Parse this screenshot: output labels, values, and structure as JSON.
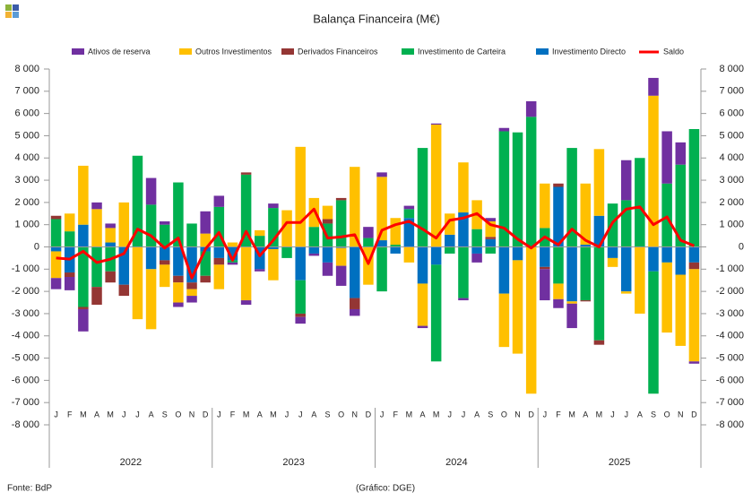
{
  "chart_data": {
    "type": "bar",
    "title": "Balança Financeira (M€)",
    "source": "Fonte: BdP",
    "credit": "(Gráfico: DGE)",
    "stacked": true,
    "categories": [
      "J",
      "F",
      "M",
      "A",
      "M",
      "J",
      "J",
      "A",
      "S",
      "O",
      "N",
      "D",
      "J",
      "F",
      "M",
      "A",
      "M",
      "J",
      "J",
      "A",
      "S",
      "O",
      "N",
      "D",
      "J",
      "F",
      "M",
      "A",
      "M",
      "J",
      "J",
      "A",
      "S",
      "O",
      "N",
      "D",
      "J",
      "F",
      "M",
      "A",
      "M",
      "J",
      "J",
      "A",
      "S",
      "O",
      "N",
      "D"
    ],
    "years": [
      "2022",
      "2023",
      "2024",
      "2025"
    ],
    "series": [
      {
        "name": "Ativos de reserva",
        "color": "#7030a0",
        "values": [
          -500,
          -600,
          -1000,
          300,
          200,
          0,
          0,
          1200,
          150,
          -200,
          -300,
          1000,
          500,
          -100,
          -200,
          -100,
          200,
          0,
          -300,
          -100,
          -600,
          -900,
          -300,
          500,
          200,
          0,
          150,
          -100,
          50,
          0,
          -100,
          -400,
          150,
          150,
          0,
          700,
          -1400,
          -400,
          -1100,
          0,
          0,
          0,
          1800,
          0,
          800,
          2350,
          1000,
          -100
        ]
      },
      {
        "name": "Outros Investimentos",
        "color": "#ffc000",
        "values": [
          -1200,
          800,
          2650,
          1700,
          650,
          2000,
          -3250,
          -2700,
          -1000,
          -900,
          -300,
          600,
          -1100,
          200,
          -2400,
          250,
          -1400,
          1650,
          4500,
          1300,
          600,
          -800,
          3600,
          -1700,
          2850,
          1200,
          -700,
          -1900,
          5500,
          950,
          2250,
          1300,
          700,
          -2400,
          -4200,
          -6600,
          2000,
          -700,
          -100,
          2750,
          3000,
          -400,
          -100,
          -3000,
          6800,
          -3150,
          -3200,
          -4150
        ]
      },
      {
        "name": "Derivados Financeiros",
        "color": "#943634",
        "values": [
          150,
          -200,
          -100,
          -800,
          -500,
          -500,
          0,
          0,
          -200,
          -300,
          -300,
          -300,
          -300,
          0,
          100,
          0,
          0,
          0,
          -150,
          0,
          200,
          100,
          -500,
          0,
          0,
          0,
          0,
          0,
          0,
          0,
          0,
          0,
          100,
          0,
          0,
          0,
          -100,
          150,
          0,
          -50,
          -200,
          0,
          0,
          0,
          0,
          0,
          0,
          -300
        ]
      },
      {
        "name": "Investimento de Carteira",
        "color": "#00b050",
        "values": [
          1250,
          700,
          -2700,
          -1800,
          -1100,
          0,
          4100,
          1900,
          1000,
          2900,
          1050,
          -1100,
          1800,
          -100,
          3250,
          500,
          1750,
          -500,
          -1500,
          900,
          1050,
          2100,
          0,
          400,
          -2000,
          100,
          400,
          4450,
          -4350,
          -300,
          -2300,
          800,
          -300,
          5200,
          5150,
          5850,
          850,
          -1650,
          4450,
          -2400,
          -4200,
          1950,
          2100,
          4000,
          -5500,
          2850,
          3700,
          5300
        ]
      },
      {
        "name": "Investimento Directo",
        "color": "#0070c0",
        "values": [
          -200,
          -1150,
          1000,
          0,
          200,
          -1700,
          0,
          -1000,
          -600,
          -1300,
          -1600,
          -200,
          -500,
          -600,
          0,
          -1000,
          -100,
          0,
          -1500,
          -300,
          -700,
          -50,
          -2300,
          0,
          300,
          -300,
          1300,
          -1650,
          -800,
          550,
          1550,
          -300,
          350,
          -2100,
          -600,
          0,
          -900,
          2700,
          -2450,
          100,
          1400,
          -500,
          -2000,
          0,
          -1100,
          -700,
          -1250,
          -700
        ]
      }
    ],
    "line": {
      "name": "Saldo",
      "color": "#ff0000",
      "values": [
        -500,
        -550,
        -200,
        -700,
        -550,
        -300,
        800,
        500,
        -50,
        400,
        -1400,
        -100,
        650,
        -600,
        700,
        -400,
        300,
        1100,
        1100,
        1700,
        400,
        450,
        550,
        -750,
        750,
        1000,
        1150,
        800,
        400,
        1200,
        1300,
        1500,
        1000,
        850,
        350,
        -50,
        450,
        100,
        800,
        300,
        0,
        1100,
        1700,
        1800,
        1000,
        1350,
        300,
        50
      ]
    },
    "ylim": [
      -8000,
      8000
    ],
    "yticks": [
      {
        "value": 8000,
        "label": "8 000"
      },
      {
        "value": 7000,
        "label": "7 000"
      },
      {
        "value": 6000,
        "label": "6 000"
      },
      {
        "value": 5000,
        "label": "5 000"
      },
      {
        "value": 4000,
        "label": "4 000"
      },
      {
        "value": 3000,
        "label": "3 000"
      },
      {
        "value": 2000,
        "label": "2 000"
      },
      {
        "value": 1000,
        "label": "1 000"
      },
      0,
      {
        "value": -1000,
        "label": "-1 000"
      },
      {
        "value": -2000,
        "label": "-2 000"
      },
      {
        "value": -3000,
        "label": "-3 000"
      },
      {
        "value": -4000,
        "label": "-4 000"
      },
      {
        "value": -5000,
        "label": "-5 000"
      },
      {
        "value": -6000,
        "label": "-6 000"
      },
      {
        "value": -7000,
        "label": "-7 000"
      },
      {
        "value": -8000,
        "label": "-8 000"
      }
    ],
    "grid": false
  }
}
